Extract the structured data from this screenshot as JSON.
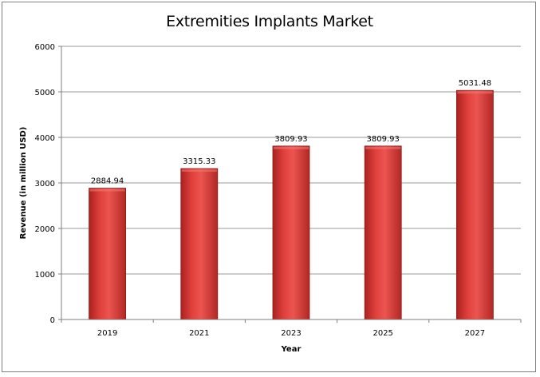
{
  "chart_data": {
    "type": "bar",
    "title": "Extremities Implants Market",
    "xlabel": "Year",
    "ylabel": "Revenue (in million USD)",
    "categories": [
      "2019",
      "2021",
      "2023",
      "2025",
      "2027"
    ],
    "values": [
      2884.94,
      3315.33,
      3809.93,
      3809.93,
      5031.48
    ],
    "value_labels": [
      "2884.94",
      "3315.33",
      "3809.93",
      "3809.93",
      "5031.48"
    ],
    "ylim": [
      0,
      6000
    ],
    "yticks": [
      0,
      1000,
      2000,
      3000,
      4000,
      5000,
      6000
    ],
    "grid": true,
    "legend": "none",
    "bar_color": "#d9322f"
  }
}
